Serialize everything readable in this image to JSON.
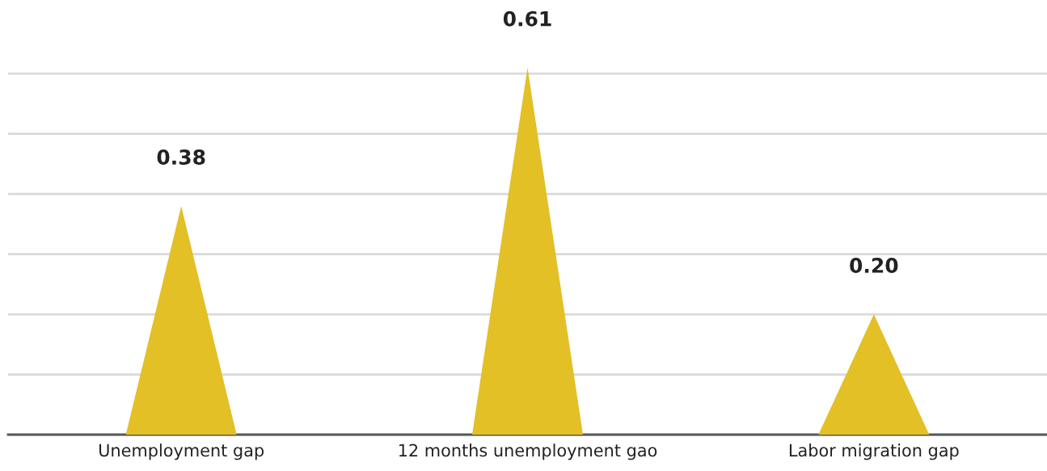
{
  "chart_data": {
    "type": "bar",
    "categories": [
      "Unemployment gap",
      "12 months unemployment gao",
      "Labor migration gap"
    ],
    "values": [
      0.38,
      0.61,
      0.2
    ],
    "value_labels": [
      "0.38",
      "0.61",
      "0.20"
    ],
    "color": "#e2c026",
    "yticks": [
      {
        "value": 0.1,
        "label": null
      },
      {
        "value": 0.2,
        "label": null
      },
      {
        "value": 0.3,
        "label": null
      },
      {
        "value": 0.4,
        "label": null
      },
      {
        "value": 0.5,
        "label": null
      },
      {
        "value": 0.6,
        "label": null
      }
    ],
    "grid": "y",
    "tick_labels": "x"
  }
}
